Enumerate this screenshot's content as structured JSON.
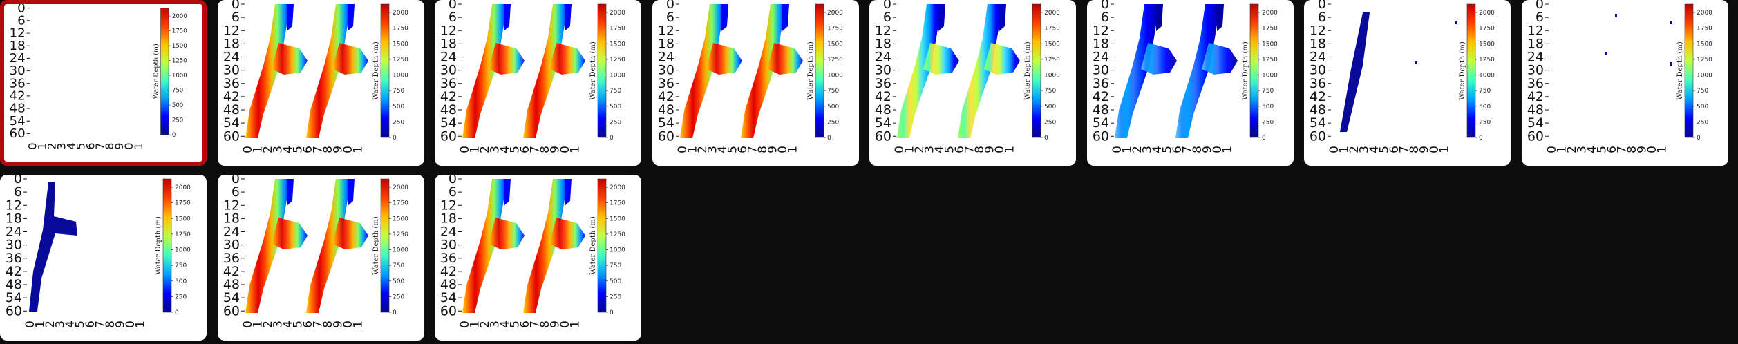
{
  "gallery": {
    "thumbnails": [
      {
        "variant": "empty",
        "selected": true
      },
      {
        "variant": "full",
        "selected": false
      },
      {
        "variant": "full",
        "selected": false
      },
      {
        "variant": "full",
        "selected": false
      },
      {
        "variant": "medium",
        "selected": false
      },
      {
        "variant": "low",
        "selected": false
      },
      {
        "variant": "sparse",
        "selected": false
      },
      {
        "variant": "dots",
        "selected": false
      },
      {
        "variant": "single",
        "selected": false
      },
      {
        "variant": "full",
        "selected": false
      },
      {
        "variant": "full",
        "selected": false
      }
    ],
    "yticks": [
      "0",
      "6",
      "12",
      "18",
      "24",
      "30",
      "36",
      "42",
      "48",
      "54",
      "60"
    ],
    "xticks": [
      "0",
      "1",
      "2",
      "3",
      "4",
      "5",
      "6",
      "7",
      "8",
      "9",
      "0",
      "1"
    ],
    "colorbar": {
      "title": "Water Depth (m)",
      "ticks": [
        "2000",
        "1750",
        "1500",
        "1250",
        "1000",
        "750",
        "500",
        "250",
        "0"
      ]
    },
    "colors": {
      "selected_border": "#b3090f",
      "background": "#0c0c0c",
      "colormap": [
        "#08088c",
        "#0000ff",
        "#00a0ff",
        "#40ffc0",
        "#c0ff40",
        "#ffc000",
        "#ff4000",
        "#c00000"
      ]
    }
  }
}
